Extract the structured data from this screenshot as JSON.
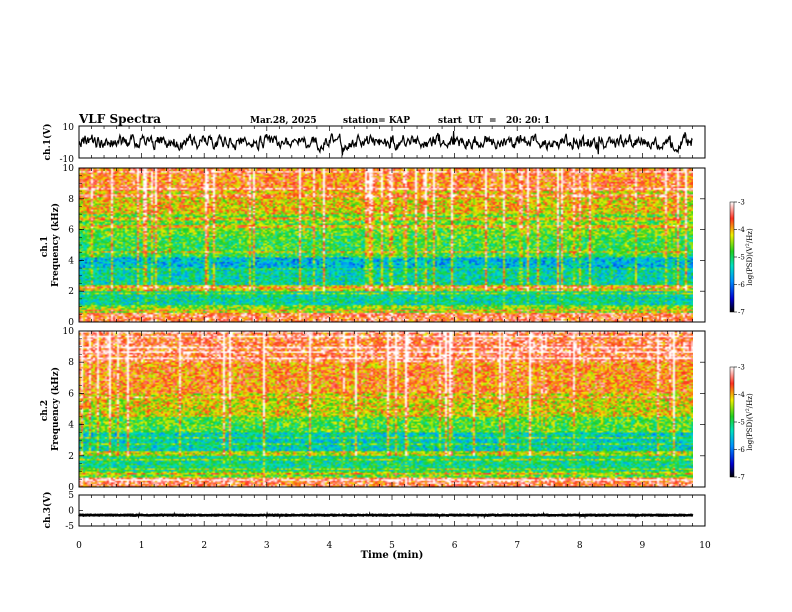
{
  "header": {
    "title": "VLF Spectra",
    "date": "Mar.28, 2025",
    "station": "station= KAP",
    "start": "start  UT  =   20: 20: 1"
  },
  "chart_data": [
    {
      "type": "line",
      "name": "ch1-waveform",
      "ylabel": "ch.1(V)",
      "ylim": [
        -10,
        10
      ],
      "yticks": [
        "10",
        "-10"
      ],
      "xlim": [
        0,
        10
      ],
      "data_extent_min": 9.8,
      "noise_amplitude_v": 4
    },
    {
      "type": "heatmap",
      "name": "ch1-spectrogram",
      "ylabel": "ch.1\nFrequency (kHz)",
      "ylim": [
        0,
        10
      ],
      "yticks": [
        "0",
        "2",
        "4",
        "6",
        "8",
        "10"
      ],
      "xlim": [
        0,
        10
      ],
      "data_extent_min": 9.8,
      "colorbar": {
        "label": "log(PSD)(V²/Hz)",
        "range": [
          -7,
          -3
        ],
        "ticks": [
          "-3",
          "-4",
          "-5",
          "-6",
          "-7"
        ]
      },
      "bands_khz": [
        {
          "f": [
            0.0,
            0.6
          ],
          "level": -3.6
        },
        {
          "f": [
            0.6,
            1.0
          ],
          "level": -4.6
        },
        {
          "f": [
            1.0,
            2.0
          ],
          "level": -5.3
        },
        {
          "f": [
            2.0,
            2.4
          ],
          "level": -4.4
        },
        {
          "f": [
            2.4,
            3.4
          ],
          "level": -5.4
        },
        {
          "f": [
            3.4,
            4.2
          ],
          "level": -5.7
        },
        {
          "f": [
            4.2,
            5.6
          ],
          "level": -5.0
        },
        {
          "f": [
            5.6,
            7.0
          ],
          "level": -4.8
        },
        {
          "f": [
            7.0,
            8.5
          ],
          "level": -4.3
        },
        {
          "f": [
            8.5,
            10.0
          ],
          "level": -3.9
        }
      ]
    },
    {
      "type": "heatmap",
      "name": "ch2-spectrogram",
      "ylabel": "ch.2\nFrequency (kHz)",
      "ylim": [
        0,
        10
      ],
      "yticks": [
        "0",
        "2",
        "4",
        "6",
        "8",
        "10"
      ],
      "xlim": [
        0,
        10
      ],
      "data_extent_min": 9.8,
      "colorbar": {
        "label": "log(PSD)(V²/Hz)",
        "range": [
          -7,
          -3
        ],
        "ticks": [
          "-3",
          "-4",
          "-5",
          "-6",
          "-7"
        ]
      },
      "bands_khz": [
        {
          "f": [
            0.0,
            0.6
          ],
          "level": -3.6
        },
        {
          "f": [
            0.6,
            1.0
          ],
          "level": -4.7
        },
        {
          "f": [
            1.0,
            2.0
          ],
          "level": -5.2
        },
        {
          "f": [
            2.0,
            2.3
          ],
          "level": -4.5
        },
        {
          "f": [
            2.3,
            3.5
          ],
          "level": -5.5
        },
        {
          "f": [
            3.5,
            4.5
          ],
          "level": -4.9
        },
        {
          "f": [
            4.5,
            6.0
          ],
          "level": -4.4
        },
        {
          "f": [
            6.0,
            8.0
          ],
          "level": -4.0
        },
        {
          "f": [
            8.0,
            10.0
          ],
          "level": -3.7
        }
      ]
    },
    {
      "type": "line",
      "name": "ch3-waveform",
      "ylabel": "ch.3(V)",
      "ylim": [
        -5,
        5
      ],
      "yticks": [
        "5",
        "0",
        "-5"
      ],
      "xlim": [
        0,
        10
      ],
      "data_extent_min": 9.8,
      "baseline_v": -1.5,
      "noise_amplitude_v": 0.5
    }
  ],
  "xaxis": {
    "label": "Time (min)",
    "ticks": [
      "0",
      "1",
      "2",
      "3",
      "4",
      "5",
      "6",
      "7",
      "8",
      "9",
      "10"
    ],
    "range": [
      0,
      10
    ]
  }
}
